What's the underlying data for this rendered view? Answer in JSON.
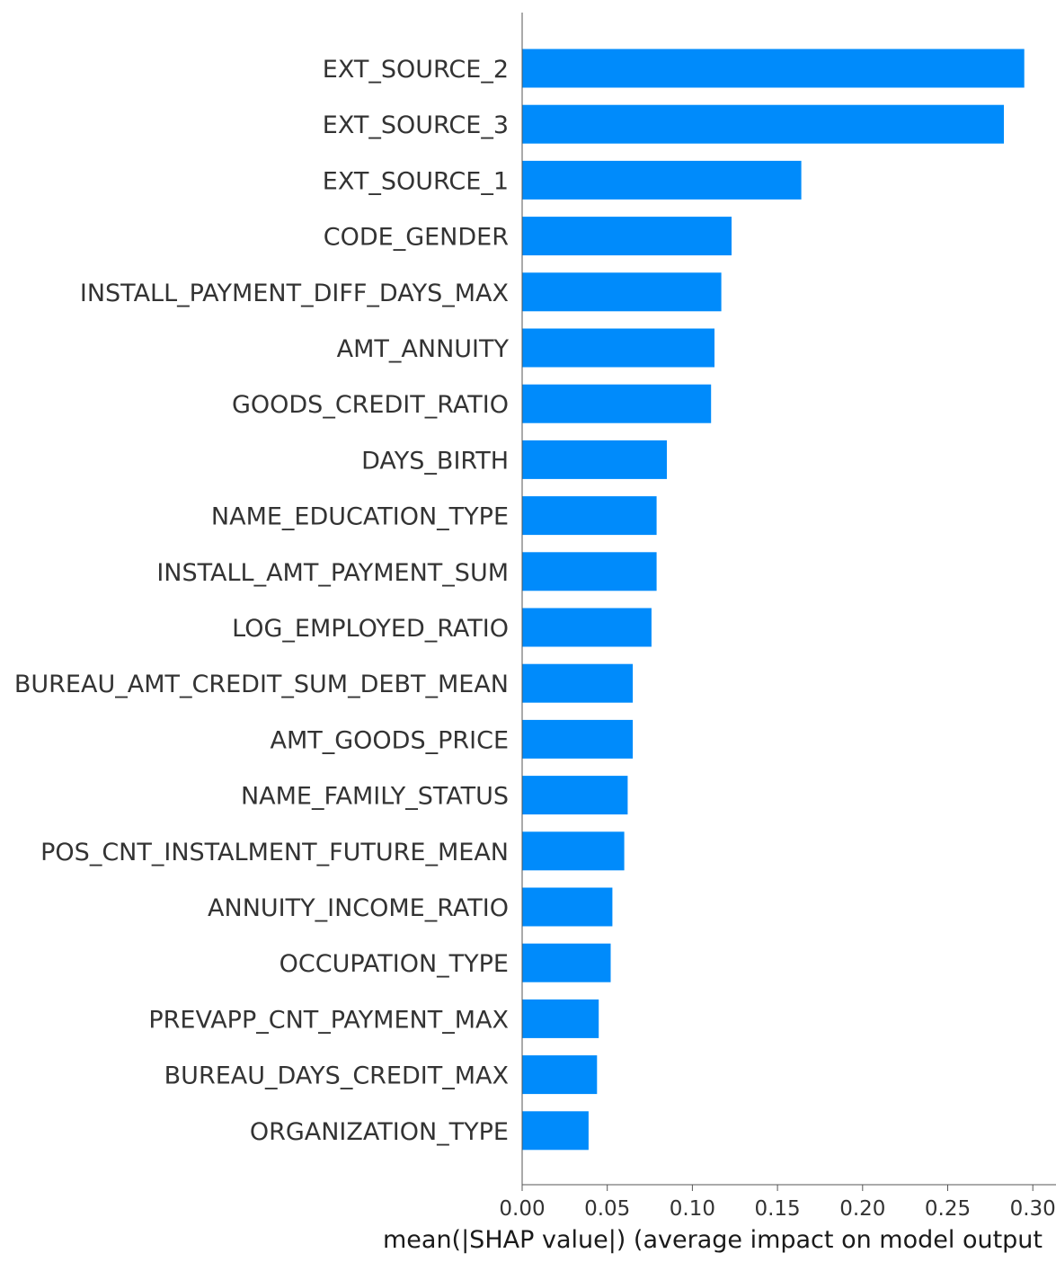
{
  "chart_data": {
    "type": "bar",
    "orientation": "horizontal",
    "bar_color": "#008bfb",
    "axis_color": "#555555",
    "text_color": "#333333",
    "categories": [
      "EXT_SOURCE_2",
      "EXT_SOURCE_3",
      "EXT_SOURCE_1",
      "CODE_GENDER",
      "INSTALL_PAYMENT_DIFF_DAYS_MAX",
      "AMT_ANNUITY",
      "GOODS_CREDIT_RATIO",
      "DAYS_BIRTH",
      "NAME_EDUCATION_TYPE",
      "INSTALL_AMT_PAYMENT_SUM",
      "LOG_EMPLOYED_RATIO",
      "BUREAU_AMT_CREDIT_SUM_DEBT_MEAN",
      "AMT_GOODS_PRICE",
      "NAME_FAMILY_STATUS",
      "POS_CNT_INSTALMENT_FUTURE_MEAN",
      "ANNUITY_INCOME_RATIO",
      "OCCUPATION_TYPE",
      "PREVAPP_CNT_PAYMENT_MAX",
      "BUREAU_DAYS_CREDIT_MAX",
      "ORGANIZATION_TYPE"
    ],
    "values": [
      0.295,
      0.283,
      0.164,
      0.123,
      0.117,
      0.113,
      0.111,
      0.085,
      0.079,
      0.079,
      0.076,
      0.065,
      0.065,
      0.062,
      0.06,
      0.053,
      0.052,
      0.045,
      0.044,
      0.039
    ],
    "xticks": [
      0.0,
      0.05,
      0.1,
      0.15,
      0.2,
      0.25,
      0.3
    ],
    "xtick_labels": [
      "0.00",
      "0.05",
      "0.10",
      "0.15",
      "0.20",
      "0.25",
      "0.30"
    ],
    "xlim": [
      0,
      0.3
    ],
    "title": "",
    "xlabel": "mean(|SHAP value|) (average impact on model output",
    "ylabel": "",
    "grid": false,
    "legend": "none"
  }
}
